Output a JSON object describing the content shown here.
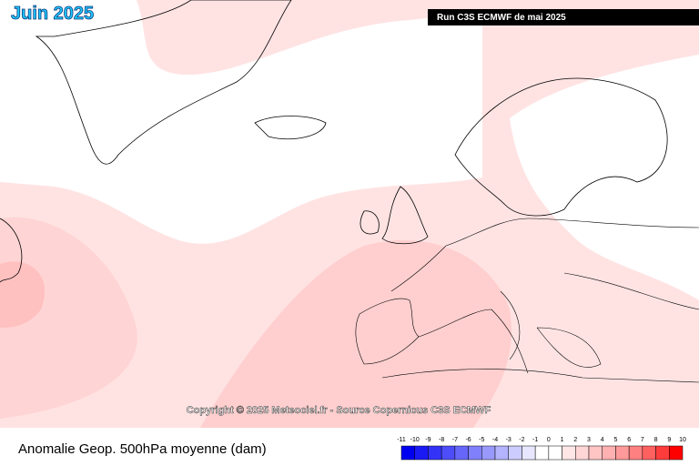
{
  "header": {
    "title": "Juin 2025",
    "run": "Run C3S ECMWF de mai 2025"
  },
  "copyright": "Copyright © 2025 Meteociel.fr - Source Copernicus C3S ECMWF",
  "footer": {
    "caption": "Anomalie Geop. 500hPa moyenne (dam)"
  },
  "legend": {
    "labels": [
      -11,
      -10,
      -9,
      -8,
      -7,
      -6,
      -5,
      -4,
      -3,
      -2,
      -1,
      0,
      1,
      2,
      3,
      4,
      5,
      6,
      7,
      8,
      9,
      10
    ],
    "colors": [
      "#0000f0",
      "#1a1af5",
      "#3333f8",
      "#4d4dfa",
      "#6666fb",
      "#8080fc",
      "#9999fd",
      "#b3b3fe",
      "#ccccff",
      "#e6e6ff",
      "#ffffff",
      "#ffffff",
      "#ffe6e6",
      "#ffd6d6",
      "#ffc4c4",
      "#ffb0b0",
      "#ff9a9a",
      "#ff8080",
      "#ff6060",
      "#ff3c3c",
      "#ff0000"
    ]
  }
}
